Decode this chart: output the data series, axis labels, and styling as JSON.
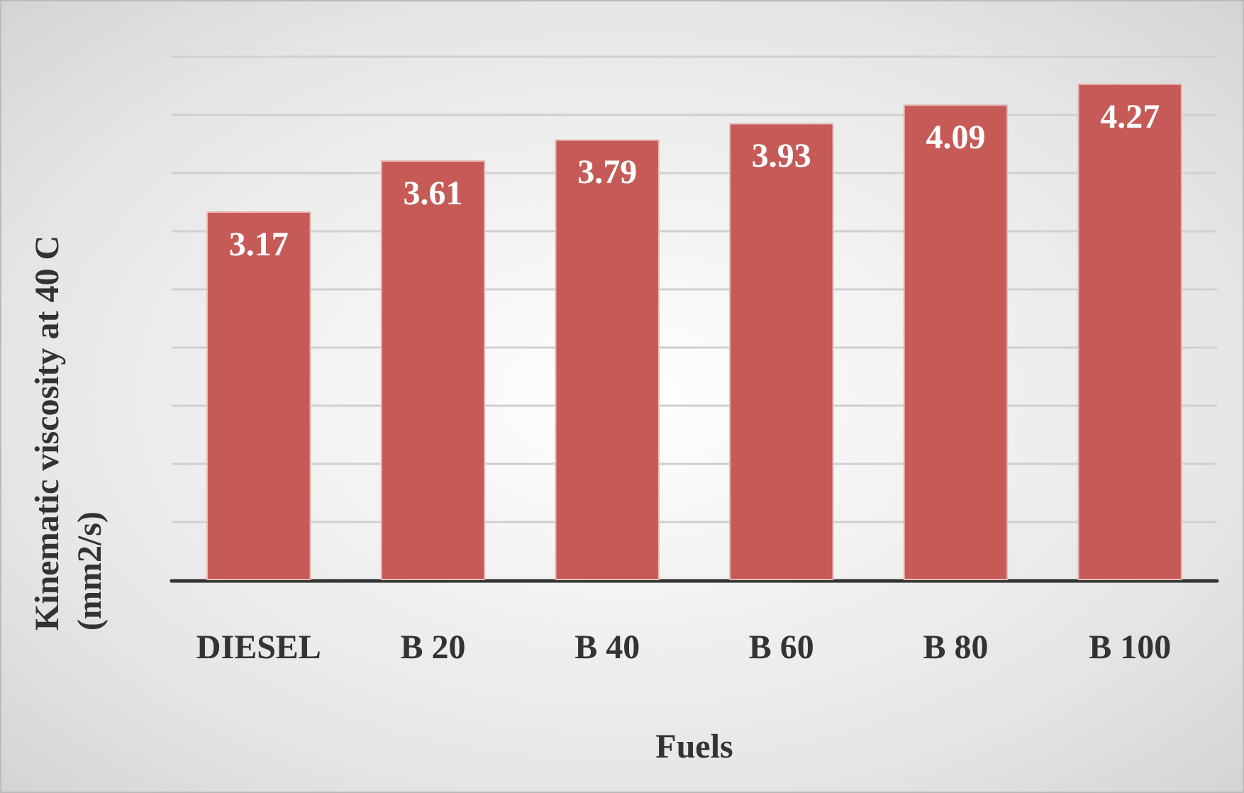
{
  "chart_data": {
    "type": "bar",
    "xlabel": "Fuels",
    "ylabel": "Kinematic viscosity at 40 C (mm2/s)",
    "categories": [
      "DIESEL",
      "B 20",
      "B 40",
      "B 60",
      "B 80",
      "B 100"
    ],
    "values": [
      3.17,
      3.61,
      3.79,
      3.93,
      4.09,
      4.27
    ],
    "color": "#c55a57",
    "ylim": [
      0,
      4.5
    ],
    "yticks": [
      {
        "value": 0,
        "label": null
      },
      {
        "value": 0.5,
        "label": null
      },
      {
        "value": 1,
        "label": null
      },
      {
        "value": 1.5,
        "label": null
      },
      {
        "value": 2,
        "label": null
      },
      {
        "value": 2.5,
        "label": null
      },
      {
        "value": 3,
        "label": null
      },
      {
        "value": 3.5,
        "label": null
      },
      {
        "value": 4,
        "label": null
      },
      {
        "value": 4.5,
        "label": null
      }
    ],
    "grid": "y",
    "tick_labels": "x",
    "data_labels": true
  }
}
